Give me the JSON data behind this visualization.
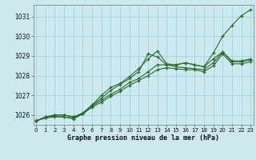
{
  "xlabel": "Graphe pression niveau de la mer (hPa)",
  "background_color": "#cce9f0",
  "grid_color": "#aad4dc",
  "line_color": "#2d6a2d",
  "ylim": [
    1025.5,
    1031.6
  ],
  "xlim": [
    -0.3,
    23.3
  ],
  "yticks": [
    1026,
    1027,
    1028,
    1029,
    1030,
    1031
  ],
  "xticks": [
    0,
    1,
    2,
    3,
    4,
    5,
    6,
    7,
    8,
    9,
    10,
    11,
    12,
    13,
    14,
    15,
    16,
    17,
    18,
    19,
    20,
    21,
    22,
    23
  ],
  "series": [
    [
      1025.7,
      1025.9,
      1026.0,
      1026.0,
      1025.9,
      1026.1,
      1026.5,
      1027.0,
      1027.4,
      1027.6,
      1027.95,
      1028.35,
      1028.85,
      1029.25,
      1028.6,
      1028.55,
      1028.65,
      1028.55,
      1028.45,
      1029.15,
      1030.0,
      1030.55,
      1031.05,
      1031.35
    ],
    [
      1025.7,
      1025.9,
      1026.0,
      1026.0,
      1025.9,
      1026.05,
      1026.5,
      1026.85,
      1027.25,
      1027.55,
      1027.85,
      1028.2,
      1029.1,
      1028.95,
      1028.55,
      1028.55,
      1028.65,
      1028.55,
      1028.45,
      1028.85,
      1029.2,
      1028.75,
      1028.75,
      1028.85
    ],
    [
      1025.7,
      1025.85,
      1025.95,
      1025.9,
      1025.85,
      1026.05,
      1026.45,
      1026.75,
      1027.05,
      1027.3,
      1027.65,
      1027.85,
      1028.2,
      1028.55,
      1028.55,
      1028.45,
      1028.4,
      1028.35,
      1028.3,
      1028.65,
      1029.2,
      1028.7,
      1028.7,
      1028.8
    ],
    [
      1025.7,
      1025.85,
      1025.9,
      1025.9,
      1025.8,
      1026.05,
      1026.4,
      1026.65,
      1026.95,
      1027.2,
      1027.5,
      1027.75,
      1028.0,
      1028.3,
      1028.4,
      1028.35,
      1028.3,
      1028.3,
      1028.2,
      1028.5,
      1029.1,
      1028.6,
      1028.6,
      1028.7
    ]
  ]
}
